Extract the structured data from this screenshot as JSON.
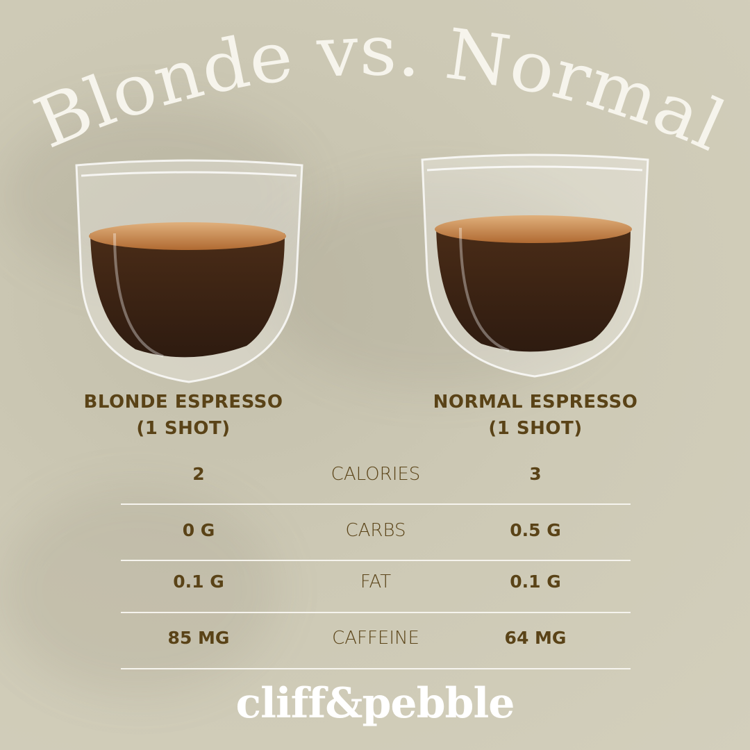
{
  "title": "Blonde vs. Normal",
  "colors": {
    "background": "#cdc9b5",
    "text": "#5a4317",
    "title": "#f6f4ec",
    "divider": "#f6f4ee",
    "coffee": "#3a2414",
    "crema": "#c98a4e"
  },
  "columns": {
    "left": {
      "name": "BLONDE ESPRESSO",
      "serving": "(1 SHOT)",
      "image": "espresso-glass-icon"
    },
    "right": {
      "name": "NORMAL ESPRESSO",
      "serving": "(1 SHOT)",
      "image": "espresso-glass-icon"
    }
  },
  "rows": [
    {
      "label": "CALORIES",
      "left": "2",
      "right": "3"
    },
    {
      "label": "CARBS",
      "left": "0 G",
      "right": "0.5 G"
    },
    {
      "label": "FAT",
      "left": "0.1 G",
      "right": "0.1 G"
    },
    {
      "label": "CAFFEINE",
      "left": "85 MG",
      "right": "64 MG"
    }
  ],
  "brand": "cliff&pebble"
}
